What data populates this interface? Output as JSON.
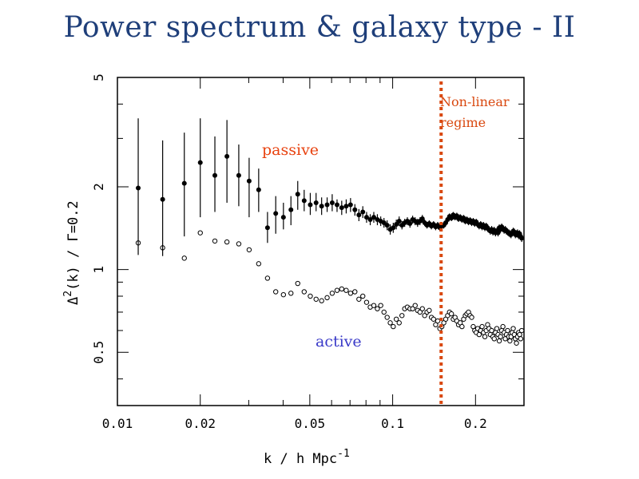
{
  "slide": {
    "title": "Power spectrum & galaxy type - II"
  },
  "chart_data": {
    "type": "scatter",
    "xscale": "log",
    "yscale": "log",
    "xlim": [
      0.01,
      0.3
    ],
    "ylim": [
      0.32,
      5
    ],
    "xlabel": "k / h Mpc",
    "xlabel_sup": "-1",
    "ylabel": "(k) / Γ=0.2",
    "ylabel_delta": "Δ",
    "ylabel_sup": "2",
    "xticks": [
      {
        "value": 0.01,
        "label": "0.01"
      },
      {
        "value": 0.02,
        "label": "0.02"
      },
      {
        "value": 0.05,
        "label": "0.05"
      },
      {
        "value": 0.1,
        "label": "0.1"
      },
      {
        "value": 0.2,
        "label": "0.2"
      }
    ],
    "yticks": [
      {
        "value": 0.5,
        "label": "0.5"
      },
      {
        "value": 1,
        "label": "1"
      },
      {
        "value": 2,
        "label": "2"
      },
      {
        "value": 5,
        "label": "5"
      }
    ],
    "grid": false,
    "vline": {
      "x": 0.15,
      "color": "#d9480f",
      "style": "dotted"
    },
    "annotations": [
      {
        "id": "passive",
        "text": "passive",
        "color": "#e8420f"
      },
      {
        "id": "active",
        "text": "active",
        "color": "#3a3ac8"
      },
      {
        "id": "nonlinear-1",
        "text": "Non-linear",
        "color": "#d9480f"
      },
      {
        "id": "nonlinear-2",
        "text": "regime",
        "color": "#d9480f"
      }
    ],
    "series": [
      {
        "name": "passive",
        "marker": "filled",
        "points": [
          [
            0.0119,
            1.98,
            1.13,
            3.55
          ],
          [
            0.0146,
            1.8,
            1.12,
            2.95
          ],
          [
            0.0175,
            2.06,
            1.32,
            3.15
          ],
          [
            0.02,
            2.45,
            1.55,
            3.55
          ],
          [
            0.0226,
            2.2,
            1.62,
            3.05
          ],
          [
            0.025,
            2.58,
            1.75,
            3.5
          ],
          [
            0.0276,
            2.2,
            1.7,
            2.85
          ],
          [
            0.0301,
            2.1,
            1.55,
            2.55
          ],
          [
            0.0326,
            1.95,
            1.62,
            2.33
          ],
          [
            0.0351,
            1.42,
            1.25,
            1.62
          ],
          [
            0.0376,
            1.6,
            1.35,
            1.85
          ],
          [
            0.0401,
            1.55,
            1.4,
            1.75
          ],
          [
            0.0427,
            1.65,
            1.45,
            1.85
          ],
          [
            0.0452,
            1.88,
            1.65,
            2.1
          ],
          [
            0.0477,
            1.78,
            1.63,
            1.95
          ],
          [
            0.0502,
            1.72,
            1.58,
            1.9
          ],
          [
            0.0527,
            1.75,
            1.63,
            1.9
          ],
          [
            0.0552,
            1.7,
            1.58,
            1.83
          ],
          [
            0.0578,
            1.72,
            1.62,
            1.83
          ],
          [
            0.0603,
            1.75,
            1.63,
            1.88
          ],
          [
            0.0628,
            1.72,
            1.62,
            1.8
          ],
          [
            0.0653,
            1.68,
            1.58,
            1.78
          ],
          [
            0.0678,
            1.7,
            1.6,
            1.8
          ],
          [
            0.0703,
            1.72,
            1.62,
            1.82
          ],
          [
            0.0729,
            1.65,
            1.57,
            1.73
          ],
          [
            0.0754,
            1.58,
            1.5,
            1.66
          ],
          [
            0.0779,
            1.62,
            1.54,
            1.7
          ],
          [
            0.0804,
            1.55,
            1.48,
            1.62
          ],
          [
            0.0829,
            1.52,
            1.45,
            1.59
          ],
          [
            0.0854,
            1.55,
            1.48,
            1.62
          ],
          [
            0.088,
            1.52,
            1.45,
            1.59
          ],
          [
            0.0905,
            1.5,
            1.44,
            1.56
          ],
          [
            0.093,
            1.48,
            1.42,
            1.54
          ],
          [
            0.0955,
            1.45,
            1.39,
            1.51
          ],
          [
            0.098,
            1.4,
            1.34,
            1.46
          ],
          [
            0.1005,
            1.42,
            1.36,
            1.48
          ],
          [
            0.1031,
            1.46,
            1.4,
            1.52
          ],
          [
            0.1056,
            1.5,
            1.44,
            1.56
          ],
          [
            0.1081,
            1.45,
            1.4,
            1.5
          ],
          [
            0.1106,
            1.48,
            1.43,
            1.53
          ],
          [
            0.1131,
            1.5,
            1.45,
            1.55
          ],
          [
            0.1156,
            1.47,
            1.42,
            1.52
          ],
          [
            0.1182,
            1.52,
            1.47,
            1.57
          ],
          [
            0.1207,
            1.5,
            1.45,
            1.55
          ],
          [
            0.1232,
            1.48,
            1.43,
            1.53
          ],
          [
            0.1257,
            1.5,
            1.45,
            1.55
          ],
          [
            0.1282,
            1.53,
            1.48,
            1.58
          ],
          [
            0.1307,
            1.48,
            1.44,
            1.52
          ],
          [
            0.1333,
            1.45,
            1.41,
            1.49
          ],
          [
            0.1358,
            1.47,
            1.43,
            1.51
          ],
          [
            0.1383,
            1.44,
            1.4,
            1.48
          ],
          [
            0.1408,
            1.46,
            1.42,
            1.5
          ],
          [
            0.1433,
            1.43,
            1.39,
            1.47
          ],
          [
            0.1458,
            1.45,
            1.41,
            1.49
          ],
          [
            0.1484,
            1.42,
            1.38,
            1.46
          ],
          [
            0.1509,
            1.44,
            1.4,
            1.48
          ],
          [
            0.1534,
            1.45,
            1.41,
            1.49
          ],
          [
            0.1559,
            1.48,
            1.44,
            1.52
          ],
          [
            0.1584,
            1.52,
            1.48,
            1.56
          ],
          [
            0.1609,
            1.56,
            1.52,
            1.6
          ],
          [
            0.1635,
            1.54,
            1.5,
            1.58
          ],
          [
            0.166,
            1.58,
            1.54,
            1.62
          ],
          [
            0.1685,
            1.55,
            1.51,
            1.59
          ],
          [
            0.171,
            1.57,
            1.53,
            1.61
          ],
          [
            0.1735,
            1.53,
            1.49,
            1.57
          ],
          [
            0.176,
            1.55,
            1.51,
            1.59
          ],
          [
            0.1786,
            1.52,
            1.48,
            1.56
          ],
          [
            0.1811,
            1.54,
            1.5,
            1.58
          ],
          [
            0.1836,
            1.5,
            1.46,
            1.54
          ],
          [
            0.1861,
            1.52,
            1.48,
            1.56
          ],
          [
            0.1886,
            1.49,
            1.45,
            1.53
          ],
          [
            0.1911,
            1.51,
            1.47,
            1.55
          ],
          [
            0.1937,
            1.48,
            1.44,
            1.52
          ],
          [
            0.1962,
            1.5,
            1.46,
            1.54
          ],
          [
            0.1987,
            1.47,
            1.43,
            1.51
          ],
          [
            0.2012,
            1.49,
            1.45,
            1.53
          ],
          [
            0.2037,
            1.46,
            1.42,
            1.5
          ],
          [
            0.2062,
            1.44,
            1.4,
            1.48
          ],
          [
            0.2088,
            1.46,
            1.42,
            1.5
          ],
          [
            0.2113,
            1.43,
            1.39,
            1.47
          ],
          [
            0.2138,
            1.45,
            1.41,
            1.49
          ],
          [
            0.2163,
            1.42,
            1.38,
            1.46
          ],
          [
            0.2188,
            1.44,
            1.4,
            1.48
          ],
          [
            0.2213,
            1.41,
            1.37,
            1.45
          ],
          [
            0.2239,
            1.4,
            1.36,
            1.44
          ],
          [
            0.2264,
            1.38,
            1.34,
            1.42
          ],
          [
            0.2289,
            1.4,
            1.36,
            1.44
          ],
          [
            0.2314,
            1.37,
            1.33,
            1.41
          ],
          [
            0.2339,
            1.39,
            1.35,
            1.43
          ],
          [
            0.2364,
            1.36,
            1.32,
            1.4
          ],
          [
            0.239,
            1.38,
            1.34,
            1.42
          ],
          [
            0.2415,
            1.36,
            1.32,
            1.4
          ],
          [
            0.244,
            1.42,
            1.38,
            1.46
          ],
          [
            0.2465,
            1.4,
            1.36,
            1.44
          ],
          [
            0.249,
            1.43,
            1.39,
            1.47
          ],
          [
            0.2515,
            1.41,
            1.37,
            1.45
          ],
          [
            0.2541,
            1.39,
            1.35,
            1.43
          ],
          [
            0.2566,
            1.4,
            1.36,
            1.44
          ],
          [
            0.2591,
            1.38,
            1.34,
            1.42
          ],
          [
            0.2616,
            1.37,
            1.33,
            1.41
          ],
          [
            0.2641,
            1.36,
            1.32,
            1.4
          ],
          [
            0.2666,
            1.35,
            1.31,
            1.39
          ],
          [
            0.2692,
            1.34,
            1.3,
            1.38
          ],
          [
            0.2717,
            1.36,
            1.32,
            1.4
          ],
          [
            0.2742,
            1.38,
            1.34,
            1.42
          ],
          [
            0.2767,
            1.37,
            1.33,
            1.41
          ],
          [
            0.2792,
            1.34,
            1.3,
            1.38
          ],
          [
            0.2817,
            1.35,
            1.31,
            1.39
          ],
          [
            0.2843,
            1.36,
            1.32,
            1.4
          ],
          [
            0.2868,
            1.33,
            1.29,
            1.37
          ],
          [
            0.2893,
            1.35,
            1.31,
            1.39
          ],
          [
            0.2918,
            1.32,
            1.28,
            1.36
          ],
          [
            0.2943,
            1.3,
            1.26,
            1.34
          ]
        ]
      },
      {
        "name": "active",
        "marker": "open",
        "points": [
          [
            0.0119,
            1.25
          ],
          [
            0.0146,
            1.2
          ],
          [
            0.0175,
            1.1
          ],
          [
            0.02,
            1.36
          ],
          [
            0.0226,
            1.27
          ],
          [
            0.025,
            1.26
          ],
          [
            0.0276,
            1.24
          ],
          [
            0.0301,
            1.18
          ],
          [
            0.0326,
            1.05
          ],
          [
            0.0351,
            0.93
          ],
          [
            0.0376,
            0.83
          ],
          [
            0.0401,
            0.81
          ],
          [
            0.0427,
            0.82
          ],
          [
            0.0452,
            0.89
          ],
          [
            0.0477,
            0.83
          ],
          [
            0.0502,
            0.8
          ],
          [
            0.0527,
            0.78
          ],
          [
            0.0552,
            0.77
          ],
          [
            0.0578,
            0.79
          ],
          [
            0.0603,
            0.82
          ],
          [
            0.0628,
            0.84
          ],
          [
            0.0653,
            0.85
          ],
          [
            0.0678,
            0.84
          ],
          [
            0.0703,
            0.82
          ],
          [
            0.0729,
            0.83
          ],
          [
            0.0754,
            0.78
          ],
          [
            0.0779,
            0.8
          ],
          [
            0.0804,
            0.76
          ],
          [
            0.0829,
            0.73
          ],
          [
            0.0854,
            0.74
          ],
          [
            0.088,
            0.72
          ],
          [
            0.0905,
            0.74
          ],
          [
            0.093,
            0.7
          ],
          [
            0.0955,
            0.67
          ],
          [
            0.098,
            0.64
          ],
          [
            0.1005,
            0.62
          ],
          [
            0.1031,
            0.66
          ],
          [
            0.1056,
            0.64
          ],
          [
            0.1081,
            0.68
          ],
          [
            0.1106,
            0.72
          ],
          [
            0.1131,
            0.73
          ],
          [
            0.1156,
            0.72
          ],
          [
            0.1182,
            0.72
          ],
          [
            0.1207,
            0.74
          ],
          [
            0.1232,
            0.71
          ],
          [
            0.1257,
            0.7
          ],
          [
            0.1282,
            0.72
          ],
          [
            0.1307,
            0.68
          ],
          [
            0.1333,
            0.7
          ],
          [
            0.1358,
            0.71
          ],
          [
            0.1383,
            0.67
          ],
          [
            0.1408,
            0.66
          ],
          [
            0.1433,
            0.63
          ],
          [
            0.1458,
            0.65
          ],
          [
            0.1484,
            0.61
          ],
          [
            0.1509,
            0.62
          ],
          [
            0.1534,
            0.64
          ],
          [
            0.1559,
            0.66
          ],
          [
            0.1584,
            0.68
          ],
          [
            0.1609,
            0.7
          ],
          [
            0.1635,
            0.69
          ],
          [
            0.166,
            0.66
          ],
          [
            0.1685,
            0.67
          ],
          [
            0.171,
            0.65
          ],
          [
            0.1735,
            0.63
          ],
          [
            0.176,
            0.64
          ],
          [
            0.1786,
            0.62
          ],
          [
            0.1811,
            0.66
          ],
          [
            0.1836,
            0.68
          ],
          [
            0.1861,
            0.69
          ],
          [
            0.1886,
            0.7
          ],
          [
            0.1911,
            0.68
          ],
          [
            0.1937,
            0.67
          ],
          [
            0.1962,
            0.62
          ],
          [
            0.1987,
            0.6
          ],
          [
            0.2012,
            0.59
          ],
          [
            0.2037,
            0.61
          ],
          [
            0.2062,
            0.58
          ],
          [
            0.2088,
            0.6
          ],
          [
            0.2113,
            0.62
          ],
          [
            0.2138,
            0.59
          ],
          [
            0.2163,
            0.57
          ],
          [
            0.2188,
            0.6
          ],
          [
            0.2213,
            0.63
          ],
          [
            0.2239,
            0.61
          ],
          [
            0.2264,
            0.58
          ],
          [
            0.2289,
            0.6
          ],
          [
            0.2314,
            0.57
          ],
          [
            0.2339,
            0.56
          ],
          [
            0.2364,
            0.59
          ],
          [
            0.239,
            0.61
          ],
          [
            0.2415,
            0.58
          ],
          [
            0.244,
            0.55
          ],
          [
            0.2465,
            0.57
          ],
          [
            0.249,
            0.6
          ],
          [
            0.2515,
            0.62
          ],
          [
            0.2541,
            0.59
          ],
          [
            0.2566,
            0.56
          ],
          [
            0.2591,
            0.58
          ],
          [
            0.2616,
            0.6
          ],
          [
            0.2641,
            0.57
          ],
          [
            0.2666,
            0.55
          ],
          [
            0.2692,
            0.57
          ],
          [
            0.2717,
            0.59
          ],
          [
            0.2742,
            0.61
          ],
          [
            0.2767,
            0.58
          ],
          [
            0.2792,
            0.56
          ],
          [
            0.2817,
            0.54
          ],
          [
            0.2843,
            0.57
          ],
          [
            0.2868,
            0.59
          ],
          [
            0.2893,
            0.58
          ],
          [
            0.2918,
            0.56
          ],
          [
            0.2943,
            0.6
          ]
        ]
      }
    ]
  }
}
